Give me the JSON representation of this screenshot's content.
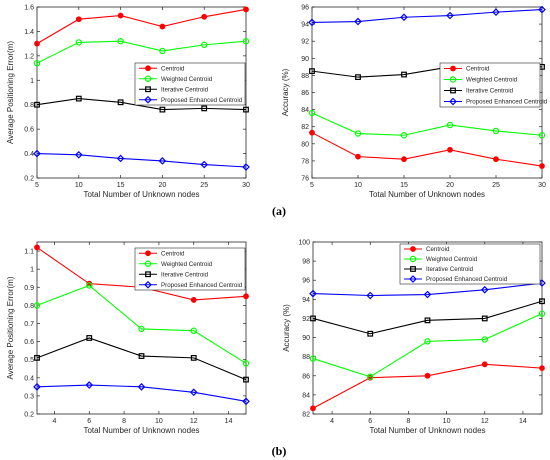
{
  "chart_data": [
    {
      "type": "line",
      "xlabel": "Total Number of Unknown nodes",
      "ylabel": "Average Positioning Error(m)",
      "xlim": [
        5,
        30
      ],
      "ylim": [
        0.2,
        1.6
      ],
      "xticks": [
        5,
        10,
        15,
        20,
        25,
        30
      ],
      "yticks": [
        0.2,
        0.4,
        0.6,
        0.8,
        1,
        1.2,
        1.4,
        1.6
      ],
      "x": [
        5,
        10,
        15,
        20,
        25,
        30
      ],
      "legend_position": "center-right",
      "grid": false,
      "series": [
        {
          "name": "Centroid",
          "color": "#ff0000",
          "marker": "circle",
          "values": [
            1.3,
            1.5,
            1.53,
            1.44,
            1.52,
            1.58
          ]
        },
        {
          "name": "Weighted Centroid",
          "color": "#00ff00",
          "marker": "circle-open",
          "values": [
            1.14,
            1.31,
            1.32,
            1.24,
            1.29,
            1.32
          ]
        },
        {
          "name": "Iterative Centroid",
          "color": "#000000",
          "marker": "square",
          "values": [
            0.8,
            0.85,
            0.82,
            0.76,
            0.77,
            0.76
          ]
        },
        {
          "name": "Proposed Enhanced Centroid",
          "color": "#0000ff",
          "marker": "diamond",
          "values": [
            0.4,
            0.39,
            0.36,
            0.34,
            0.31,
            0.29
          ]
        }
      ]
    },
    {
      "type": "line",
      "xlabel": "Total Number of Unknown nodes",
      "ylabel": "Accuracy (%)",
      "xlim": [
        5,
        30
      ],
      "ylim": [
        76,
        96
      ],
      "xticks": [
        5,
        10,
        15,
        20,
        25,
        30
      ],
      "yticks": [
        76,
        78,
        80,
        82,
        84,
        86,
        88,
        90,
        92,
        94,
        96
      ],
      "x": [
        5,
        10,
        15,
        20,
        25,
        30
      ],
      "legend_position": "center-right",
      "grid": false,
      "series": [
        {
          "name": "Centroid",
          "color": "#ff0000",
          "marker": "circle",
          "values": [
            81.3,
            78.5,
            78.2,
            79.3,
            78.2,
            77.4
          ]
        },
        {
          "name": "Weighted Centroid",
          "color": "#00ff00",
          "marker": "circle-open",
          "values": [
            83.6,
            81.2,
            81.0,
            82.2,
            81.5,
            81.0
          ]
        },
        {
          "name": "Iterative Centroid",
          "color": "#000000",
          "marker": "square",
          "values": [
            88.5,
            87.8,
            88.1,
            89.0,
            88.9,
            89.0
          ]
        },
        {
          "name": "Proposed Enhanced Centroid",
          "color": "#0000ff",
          "marker": "diamond",
          "values": [
            94.2,
            94.3,
            94.8,
            95.0,
            95.4,
            95.7
          ]
        }
      ]
    },
    {
      "type": "line",
      "xlabel": "Total Number of Unknown nodes",
      "ylabel": "Average Positioning Error(m)",
      "xlim": [
        3,
        15
      ],
      "ylim": [
        0.2,
        1.15
      ],
      "xticks": [
        4,
        6,
        8,
        10,
        12,
        14
      ],
      "yticks": [
        0.2,
        0.3,
        0.4,
        0.5,
        0.6,
        0.7,
        0.8,
        0.9,
        1,
        1.1
      ],
      "x": [
        3,
        6,
        9,
        12,
        15
      ],
      "legend_position": "top-right",
      "grid": false,
      "series": [
        {
          "name": "Centroid",
          "color": "#ff0000",
          "marker": "circle",
          "values": [
            1.12,
            0.92,
            0.9,
            0.83,
            0.85
          ]
        },
        {
          "name": "Weighted Centroid",
          "color": "#00ff00",
          "marker": "circle-open",
          "values": [
            0.8,
            0.91,
            0.67,
            0.66,
            0.48
          ]
        },
        {
          "name": "Iterative Centroid",
          "color": "#000000",
          "marker": "square",
          "values": [
            0.51,
            0.62,
            0.52,
            0.51,
            0.39
          ]
        },
        {
          "name": "Proposed Enhanced Centroid",
          "color": "#0000ff",
          "marker": "diamond",
          "values": [
            0.35,
            0.36,
            0.35,
            0.32,
            0.27
          ]
        }
      ]
    },
    {
      "type": "line",
      "xlabel": "Total Number of Unknown nodes",
      "ylabel": "Accuracy (%)",
      "xlim": [
        3,
        15
      ],
      "ylim": [
        82,
        100
      ],
      "xticks": [
        4,
        6,
        8,
        10,
        12,
        14
      ],
      "yticks": [
        82,
        84,
        86,
        88,
        90,
        92,
        94,
        96,
        98,
        100
      ],
      "x": [
        3,
        6,
        9,
        12,
        15
      ],
      "legend_position": "top-right",
      "grid": false,
      "series": [
        {
          "name": "Centroid",
          "color": "#ff0000",
          "marker": "circle",
          "values": [
            82.6,
            85.8,
            86.0,
            87.2,
            86.8
          ]
        },
        {
          "name": "Weighted Centroid",
          "color": "#00ff00",
          "marker": "circle-open",
          "values": [
            87.8,
            85.9,
            89.6,
            89.8,
            92.5
          ]
        },
        {
          "name": "Iterative Centroid",
          "color": "#000000",
          "marker": "square",
          "values": [
            92.0,
            90.4,
            91.8,
            92.0,
            93.8
          ]
        },
        {
          "name": "Proposed Enhanced Centroid",
          "color": "#0000ff",
          "marker": "diamond",
          "values": [
            94.6,
            94.4,
            94.5,
            95.0,
            95.7
          ]
        }
      ]
    }
  ],
  "captions": [
    "(a)",
    "(b)"
  ]
}
